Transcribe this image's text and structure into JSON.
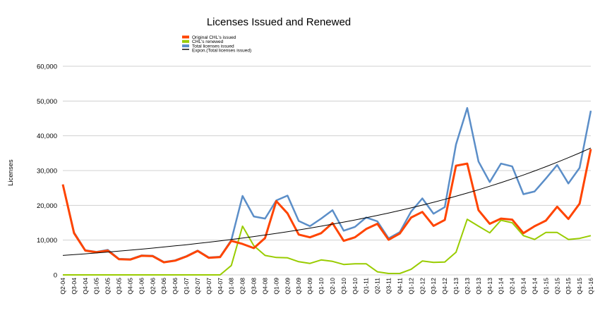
{
  "chart_data": {
    "type": "line",
    "title": "Licenses Issued and Renewed",
    "xlabel": "",
    "ylabel": "Licenses",
    "ylim": [
      0,
      60000
    ],
    "yticks": [
      0,
      10000,
      20000,
      30000,
      40000,
      50000,
      60000
    ],
    "ytick_labels": [
      "0",
      "10,000",
      "20,000",
      "30,000",
      "40,000",
      "50,000",
      "60,000"
    ],
    "grid": "horizontal",
    "legend_position": "top-center",
    "categories": [
      "Q2-04",
      "Q3-04",
      "Q4-04",
      "Q1-05",
      "Q2-05",
      "Q3-05",
      "Q4-05",
      "Q1-06",
      "Q2-06",
      "Q3-06",
      "Q4-06",
      "Q1-07",
      "Q2-07",
      "Q3-07",
      "Q4-07",
      "Q1-08",
      "Q2-08",
      "Q3-08",
      "Q4-08",
      "Q1-09",
      "Q2-09",
      "Q3-09",
      "Q4-09",
      "Q1-10",
      "Q2-10",
      "Q3-10",
      "Q4-10",
      "Q1-11",
      "Q2-11",
      "Q3-11",
      "Q4-11",
      "Q1-12",
      "Q2-12",
      "Q3-12",
      "Q4-12",
      "Q1-13",
      "Q2-13",
      "Q3-13",
      "Q4-13",
      "Q1-14",
      "Q2-14",
      "Q3-14",
      "Q4-14",
      "Q1-15",
      "Q2-15",
      "Q3-15",
      "Q4-15",
      "Q1-16"
    ],
    "series": [
      {
        "name": "Original CHL's issued",
        "color": "#ff4400",
        "values": [
          26000,
          12000,
          7000,
          6500,
          7000,
          4500,
          4400,
          5500,
          5400,
          3600,
          4100,
          5300,
          6900,
          4900,
          5100,
          9800,
          8900,
          7700,
          10600,
          21200,
          17700,
          11600,
          10800,
          12000,
          14900,
          9800,
          10800,
          13200,
          14700,
          10100,
          11900,
          16500,
          18100,
          14100,
          15800,
          31400,
          32000,
          18600,
          14700,
          16200,
          15900,
          12000,
          14000,
          15600,
          19600,
          16100,
          20500,
          36200
        ]
      },
      {
        "name": "CHL's renewed",
        "color": "#99cc00",
        "values": [
          0,
          0,
          0,
          0,
          0,
          0,
          0,
          0,
          0,
          0,
          0,
          0,
          0,
          0,
          0,
          2700,
          14000,
          8400,
          5600,
          5000,
          4900,
          3800,
          3300,
          4300,
          3900,
          3000,
          3200,
          3200,
          900,
          400,
          400,
          1600,
          4000,
          3600,
          3700,
          6500,
          16000,
          14000,
          12100,
          15700,
          15000,
          11300,
          10200,
          12200,
          12200,
          10200,
          10500,
          11300
        ]
      },
      {
        "name": "Total licenses issued",
        "color": "#5b8ec8",
        "values": [
          26000,
          12200,
          7100,
          6600,
          7200,
          4600,
          4500,
          5600,
          5500,
          3700,
          4200,
          5400,
          7000,
          5000,
          5200,
          10000,
          22700,
          16800,
          16200,
          21400,
          22800,
          15500,
          14000,
          16200,
          18600,
          12700,
          13800,
          16500,
          15400,
          10500,
          12300,
          18200,
          22000,
          17600,
          19500,
          37500,
          48000,
          32600,
          26700,
          32000,
          31200,
          23200,
          24000,
          27700,
          31600,
          26300,
          30800,
          47200
        ]
      }
    ],
    "trendline": {
      "name": "Expon.(Total licenses issued)",
      "color": "#000000",
      "type": "exponential",
      "start_value": 5600,
      "end_value": 36500
    }
  }
}
